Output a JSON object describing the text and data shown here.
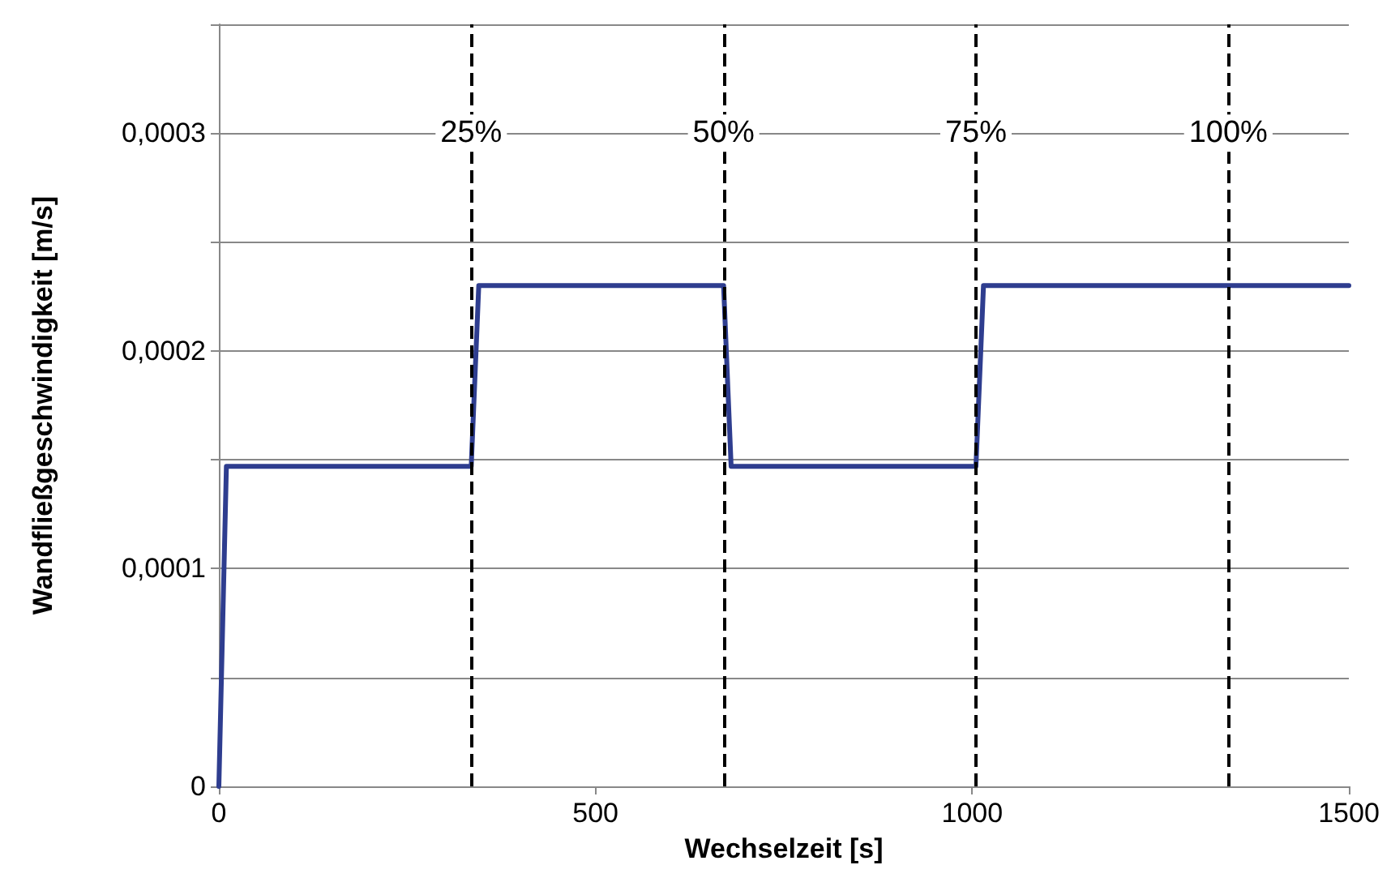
{
  "chart_data": {
    "type": "line",
    "xlabel": "Wechselzeit [s]",
    "ylabel": "Wandfließgeschwindigkeit [m/s]",
    "x": [
      0,
      10,
      335,
      345,
      670,
      680,
      1005,
      1015,
      1500
    ],
    "series": [
      {
        "color": "#2e3d8f",
        "values": [
          0,
          0.000147,
          0.000147,
          0.00023,
          0.00023,
          0.000147,
          0.000147,
          0.00023,
          0.00023
        ]
      }
    ],
    "xlim": [
      0,
      1500
    ],
    "xticks": [
      0,
      500,
      1000,
      1500
    ],
    "ylim": [
      0,
      0.00035
    ],
    "yticks": [
      {
        "value": 0,
        "label": "0"
      },
      {
        "value": 5e-05,
        "label": null
      },
      {
        "value": 0.0001,
        "label": "0,0001"
      },
      {
        "value": 0.00015,
        "label": null
      },
      {
        "value": 0.0002,
        "label": "0,0002"
      },
      {
        "value": 0.00025,
        "label": null
      },
      {
        "value": 0.0003,
        "label": "0,0003"
      },
      {
        "value": 0.00035,
        "label": null
      }
    ],
    "ref_lines": [
      {
        "axis": "x",
        "value": 335,
        "color": "#000000",
        "line_style": "dashed"
      },
      {
        "axis": "x",
        "value": 670,
        "color": "#000000",
        "line_style": "dashed"
      },
      {
        "axis": "x",
        "value": 1005,
        "color": "#000000",
        "line_style": "dashed"
      },
      {
        "axis": "x",
        "value": 1340,
        "color": "#000000",
        "line_style": "dashed"
      }
    ],
    "annotations": [
      {
        "text": "25%",
        "x": 335,
        "y": 0.0003
      },
      {
        "text": "50%",
        "x": 670,
        "y": 0.0003
      },
      {
        "text": "75%",
        "x": 1005,
        "y": 0.0003
      },
      {
        "text": "100%",
        "x": 1340,
        "y": 0.0003
      }
    ],
    "grid": "y",
    "marker": "none",
    "line_style": "solid"
  }
}
